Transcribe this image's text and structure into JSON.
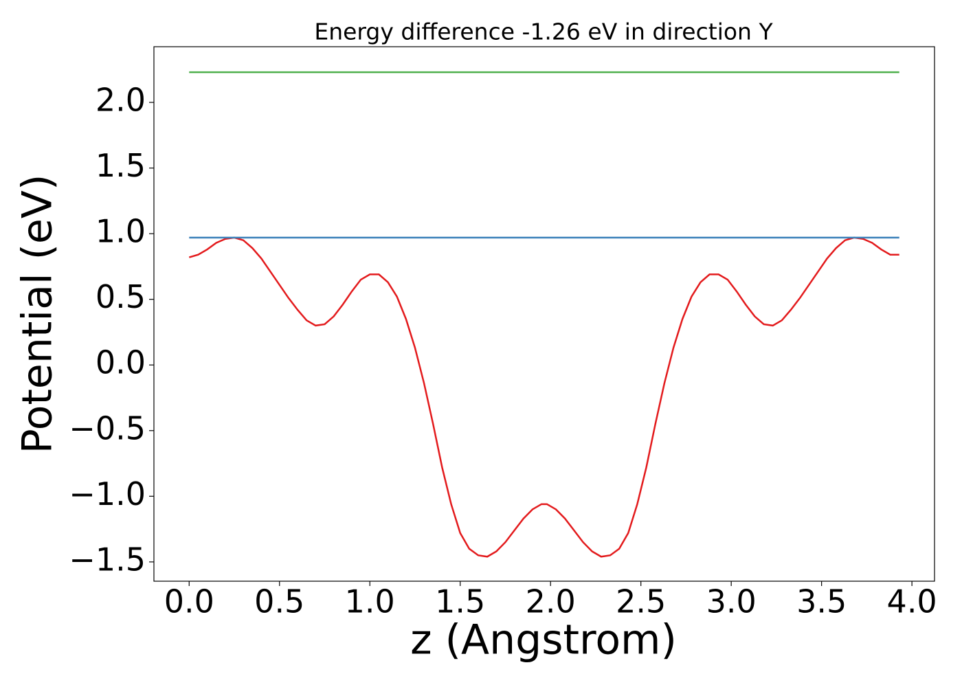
{
  "chart_data": {
    "type": "line",
    "title": "Energy difference -1.26 eV in direction Y",
    "xlabel": "z (Angstrom)",
    "ylabel": "Potential (eV)",
    "xlim": [
      -0.195,
      4.125
    ],
    "ylim": [
      -1.647,
      2.424
    ],
    "xticks": [
      {
        "value": 0,
        "label": "0.0"
      },
      {
        "value": 0.5,
        "label": "0.5"
      },
      {
        "value": 1,
        "label": "1.0"
      },
      {
        "value": 1.5,
        "label": "1.5"
      },
      {
        "value": 2,
        "label": "2.0"
      },
      {
        "value": 2.5,
        "label": "2.5"
      },
      {
        "value": 3,
        "label": "3.0"
      },
      {
        "value": 3.5,
        "label": "3.5"
      },
      {
        "value": 4,
        "label": "4.0"
      }
    ],
    "yticks": [
      {
        "value": -1.5,
        "label": "−1.5"
      },
      {
        "value": -1,
        "label": "−1.0"
      },
      {
        "value": -0.5,
        "label": "−0.5"
      },
      {
        "value": 0,
        "label": "0.0"
      },
      {
        "value": 0.5,
        "label": "0.5"
      },
      {
        "value": 1,
        "label": "1.0"
      },
      {
        "value": 1.5,
        "label": "1.5"
      },
      {
        "value": 2,
        "label": "2.0"
      }
    ],
    "grid": false,
    "series": [
      {
        "color": "#e31a1c",
        "x": [
          0,
          0.05,
          0.1,
          0.15,
          0.2,
          0.25,
          0.3,
          0.35,
          0.4,
          0.45,
          0.5,
          0.55,
          0.6,
          0.65,
          0.7,
          0.75,
          0.8,
          0.85,
          0.9,
          0.95,
          1.0,
          1.05,
          1.1,
          1.15,
          1.2,
          1.25,
          1.3,
          1.35,
          1.4,
          1.45,
          1.5,
          1.55,
          1.6,
          1.65,
          1.7,
          1.75,
          1.8,
          1.85,
          1.9,
          1.95,
          1.98,
          2.03,
          2.08,
          2.13,
          2.18,
          2.23,
          2.28,
          2.33,
          2.38,
          2.43,
          2.48,
          2.53,
          2.58,
          2.63,
          2.68,
          2.73,
          2.78,
          2.83,
          2.88,
          2.93,
          2.98,
          3.03,
          3.08,
          3.13,
          3.18,
          3.23,
          3.28,
          3.33,
          3.38,
          3.43,
          3.48,
          3.53,
          3.58,
          3.63,
          3.68,
          3.73,
          3.78,
          3.83,
          3.88,
          3.93
        ],
        "values": [
          0.82,
          0.84,
          0.88,
          0.93,
          0.96,
          0.97,
          0.95,
          0.89,
          0.81,
          0.71,
          0.61,
          0.51,
          0.42,
          0.34,
          0.3,
          0.31,
          0.37,
          0.46,
          0.56,
          0.65,
          0.69,
          0.69,
          0.63,
          0.52,
          0.35,
          0.13,
          -0.14,
          -0.45,
          -0.78,
          -1.06,
          -1.28,
          -1.4,
          -1.45,
          -1.46,
          -1.42,
          -1.35,
          -1.26,
          -1.17,
          -1.1,
          -1.06,
          -1.06,
          -1.1,
          -1.17,
          -1.26,
          -1.35,
          -1.42,
          -1.46,
          -1.45,
          -1.4,
          -1.28,
          -1.06,
          -0.78,
          -0.45,
          -0.14,
          0.13,
          0.35,
          0.52,
          0.63,
          0.69,
          0.69,
          0.65,
          0.56,
          0.46,
          0.37,
          0.31,
          0.3,
          0.34,
          0.42,
          0.51,
          0.61,
          0.71,
          0.81,
          0.89,
          0.95,
          0.97,
          0.96,
          0.93,
          0.88,
          0.84,
          0.84
        ]
      },
      {
        "color": "#377eb8",
        "x": [
          0,
          3.93
        ],
        "values": [
          0.97,
          0.97
        ]
      },
      {
        "color": "#4daf4a",
        "x": [
          0,
          3.93
        ],
        "values": [
          2.23,
          2.23
        ]
      }
    ]
  }
}
